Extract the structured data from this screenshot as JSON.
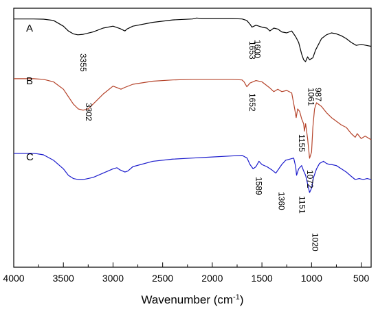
{
  "chart_data": {
    "type": "line",
    "title": "",
    "xlabel": "Wavenumber (cm",
    "xlabel_sup": "-1",
    "xlabel_suffix": ")",
    "ylabel": "",
    "xlim": [
      4000,
      400
    ],
    "x_reversed": true,
    "yaxis_visible": false,
    "grid": false,
    "x_ticks": [
      4000,
      3500,
      3000,
      2500,
      2000,
      1500,
      1000,
      500
    ],
    "series": [
      {
        "name": "A",
        "color": "#000000",
        "points": [
          [
            4000,
            0.945
          ],
          [
            3800,
            0.945
          ],
          [
            3700,
            0.943
          ],
          [
            3600,
            0.93
          ],
          [
            3500,
            0.87
          ],
          [
            3450,
            0.82
          ],
          [
            3400,
            0.79
          ],
          [
            3355,
            0.78
          ],
          [
            3300,
            0.785
          ],
          [
            3200,
            0.81
          ],
          [
            3100,
            0.85
          ],
          [
            3000,
            0.87
          ],
          [
            2930,
            0.845
          ],
          [
            2880,
            0.82
          ],
          [
            2860,
            0.84
          ],
          [
            2800,
            0.87
          ],
          [
            2600,
            0.91
          ],
          [
            2400,
            0.935
          ],
          [
            2200,
            0.945
          ],
          [
            2160,
            0.955
          ],
          [
            2100,
            0.95
          ],
          [
            2000,
            0.95
          ],
          [
            1900,
            0.95
          ],
          [
            1800,
            0.95
          ],
          [
            1700,
            0.945
          ],
          [
            1653,
            0.93
          ],
          [
            1620,
            0.89
          ],
          [
            1600,
            0.86
          ],
          [
            1560,
            0.88
          ],
          [
            1500,
            0.86
          ],
          [
            1450,
            0.85
          ],
          [
            1420,
            0.82
          ],
          [
            1380,
            0.85
          ],
          [
            1340,
            0.84
          ],
          [
            1300,
            0.81
          ],
          [
            1250,
            0.8
          ],
          [
            1200,
            0.82
          ],
          [
            1160,
            0.76
          ],
          [
            1130,
            0.7
          ],
          [
            1100,
            0.58
          ],
          [
            1080,
            0.52
          ],
          [
            1061,
            0.5
          ],
          [
            1040,
            0.55
          ],
          [
            1020,
            0.52
          ],
          [
            987,
            0.54
          ],
          [
            960,
            0.62
          ],
          [
            900,
            0.74
          ],
          [
            850,
            0.78
          ],
          [
            800,
            0.8
          ],
          [
            750,
            0.79
          ],
          [
            700,
            0.77
          ],
          [
            650,
            0.74
          ],
          [
            600,
            0.7
          ],
          [
            550,
            0.67
          ],
          [
            500,
            0.68
          ],
          [
            450,
            0.67
          ],
          [
            400,
            0.66
          ]
        ]
      },
      {
        "name": "B",
        "color": "#b5432a",
        "points": [
          [
            4000,
            0.945
          ],
          [
            3800,
            0.945
          ],
          [
            3700,
            0.94
          ],
          [
            3600,
            0.92
          ],
          [
            3500,
            0.86
          ],
          [
            3450,
            0.8
          ],
          [
            3400,
            0.74
          ],
          [
            3350,
            0.7
          ],
          [
            3302,
            0.69
          ],
          [
            3250,
            0.7
          ],
          [
            3200,
            0.74
          ],
          [
            3100,
            0.82
          ],
          [
            3000,
            0.885
          ],
          [
            2950,
            0.87
          ],
          [
            2920,
            0.86
          ],
          [
            2880,
            0.875
          ],
          [
            2800,
            0.9
          ],
          [
            2600,
            0.925
          ],
          [
            2400,
            0.935
          ],
          [
            2200,
            0.94
          ],
          [
            2000,
            0.94
          ],
          [
            1900,
            0.94
          ],
          [
            1800,
            0.94
          ],
          [
            1700,
            0.935
          ],
          [
            1680,
            0.92
          ],
          [
            1652,
            0.88
          ],
          [
            1620,
            0.91
          ],
          [
            1560,
            0.93
          ],
          [
            1500,
            0.92
          ],
          [
            1420,
            0.87
          ],
          [
            1380,
            0.84
          ],
          [
            1340,
            0.86
          ],
          [
            1300,
            0.84
          ],
          [
            1250,
            0.85
          ],
          [
            1200,
            0.83
          ],
          [
            1170,
            0.7
          ],
          [
            1155,
            0.63
          ],
          [
            1140,
            0.7
          ],
          [
            1120,
            0.68
          ],
          [
            1100,
            0.62
          ],
          [
            1080,
            0.58
          ],
          [
            1072,
            0.52
          ],
          [
            1060,
            0.58
          ],
          [
            1040,
            0.46
          ],
          [
            1020,
            0.3
          ],
          [
            1000,
            0.35
          ],
          [
            987,
            0.55
          ],
          [
            970,
            0.7
          ],
          [
            950,
            0.75
          ],
          [
            900,
            0.72
          ],
          [
            850,
            0.67
          ],
          [
            800,
            0.63
          ],
          [
            750,
            0.6
          ],
          [
            700,
            0.57
          ],
          [
            650,
            0.55
          ],
          [
            600,
            0.5
          ],
          [
            560,
            0.47
          ],
          [
            540,
            0.5
          ],
          [
            500,
            0.46
          ],
          [
            460,
            0.48
          ],
          [
            400,
            0.45
          ]
        ]
      },
      {
        "name": "C",
        "color": "#1a1acc",
        "points": [
          [
            4000,
            0.945
          ],
          [
            3800,
            0.945
          ],
          [
            3700,
            0.93
          ],
          [
            3600,
            0.88
          ],
          [
            3500,
            0.8
          ],
          [
            3450,
            0.74
          ],
          [
            3400,
            0.71
          ],
          [
            3350,
            0.7
          ],
          [
            3300,
            0.7
          ],
          [
            3200,
            0.72
          ],
          [
            3100,
            0.76
          ],
          [
            3000,
            0.8
          ],
          [
            2960,
            0.81
          ],
          [
            2930,
            0.79
          ],
          [
            2880,
            0.77
          ],
          [
            2850,
            0.78
          ],
          [
            2800,
            0.82
          ],
          [
            2600,
            0.87
          ],
          [
            2400,
            0.89
          ],
          [
            2200,
            0.9
          ],
          [
            2000,
            0.91
          ],
          [
            1800,
            0.92
          ],
          [
            1700,
            0.925
          ],
          [
            1650,
            0.9
          ],
          [
            1620,
            0.84
          ],
          [
            1589,
            0.8
          ],
          [
            1560,
            0.82
          ],
          [
            1530,
            0.87
          ],
          [
            1500,
            0.84
          ],
          [
            1450,
            0.82
          ],
          [
            1400,
            0.79
          ],
          [
            1360,
            0.76
          ],
          [
            1330,
            0.8
          ],
          [
            1300,
            0.84
          ],
          [
            1260,
            0.88
          ],
          [
            1220,
            0.89
          ],
          [
            1180,
            0.9
          ],
          [
            1160,
            0.82
          ],
          [
            1151,
            0.74
          ],
          [
            1130,
            0.8
          ],
          [
            1100,
            0.83
          ],
          [
            1080,
            0.78
          ],
          [
            1060,
            0.74
          ],
          [
            1040,
            0.66
          ],
          [
            1020,
            0.58
          ],
          [
            1000,
            0.62
          ],
          [
            980,
            0.72
          ],
          [
            950,
            0.8
          ],
          [
            920,
            0.85
          ],
          [
            900,
            0.86
          ],
          [
            880,
            0.87
          ],
          [
            850,
            0.85
          ],
          [
            820,
            0.84
          ],
          [
            800,
            0.84
          ],
          [
            750,
            0.83
          ],
          [
            700,
            0.8
          ],
          [
            650,
            0.77
          ],
          [
            600,
            0.73
          ],
          [
            560,
            0.7
          ],
          [
            520,
            0.71
          ],
          [
            480,
            0.7
          ],
          [
            440,
            0.71
          ],
          [
            400,
            0.7
          ]
        ]
      }
    ],
    "peak_labels": [
      {
        "series": "A",
        "text": "3355",
        "x": 3355
      },
      {
        "series": "A",
        "text": "1653",
        "x": 1653
      },
      {
        "series": "A",
        "text": "1600",
        "x": 1600
      },
      {
        "series": "A",
        "text": "1061",
        "x": 1061
      },
      {
        "series": "A",
        "text": "987",
        "x": 987
      },
      {
        "series": "B",
        "text": "3302",
        "x": 3302
      },
      {
        "series": "B",
        "text": "1652",
        "x": 1652
      },
      {
        "series": "B",
        "text": "1155",
        "x": 1155
      },
      {
        "series": "B",
        "text": "1072",
        "x": 1072
      },
      {
        "series": "C",
        "text": "1589",
        "x": 1589
      },
      {
        "series": "C",
        "text": "1360",
        "x": 1360
      },
      {
        "series": "C",
        "text": "1151",
        "x": 1151
      },
      {
        "series": "C",
        "text": "1020",
        "x": 1020
      }
    ]
  }
}
